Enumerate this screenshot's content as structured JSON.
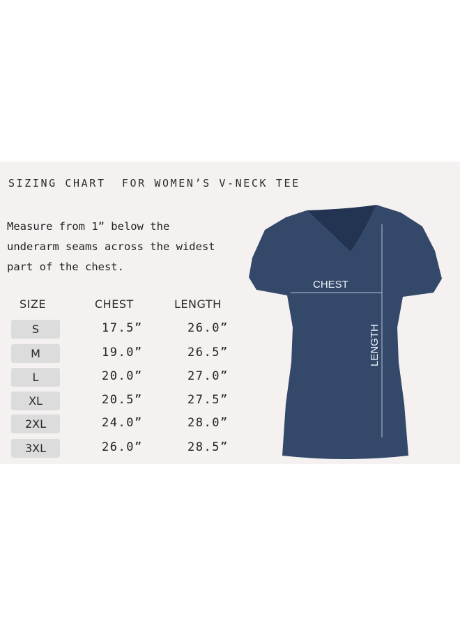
{
  "title": "SIZING CHART  FOR WOMEN’S V-NECK TEE",
  "description": "Measure from 1” below the underarm seams across the widest part of the chest.",
  "table": {
    "headers": [
      "SIZE",
      "CHEST",
      "LENGTH"
    ],
    "rows": [
      {
        "size": "S",
        "chest": "17.5”",
        "length": "26.0”"
      },
      {
        "size": "M",
        "chest": "19.0”",
        "length": "26.5”"
      },
      {
        "size": "L",
        "chest": "20.0”",
        "length": "27.0”"
      },
      {
        "size": "XL",
        "chest": "20.5”",
        "length": "27.5”"
      },
      {
        "size": "2XL",
        "chest": "24.0”",
        "length": "28.0”"
      },
      {
        "size": "3XL",
        "chest": "26.0”",
        "length": "28.5”"
      }
    ]
  },
  "diagram": {
    "chest_label": "CHEST",
    "length_label": "LENGTH",
    "shirt_color": "#34486a"
  }
}
